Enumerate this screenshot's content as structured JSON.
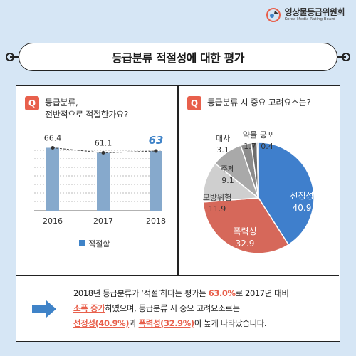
{
  "logo": {
    "name_ko": "영상물등급위원회",
    "name_en": "Korea Media Rating Board"
  },
  "title": "등급분류 적절성에 대한 평가",
  "q_badge": "Q",
  "left_question": {
    "line1": "등급분류,",
    "line2": "전반적으로 적절한가요?"
  },
  "right_question": "등급분류 시 중요 고려요소는?",
  "colors": {
    "accent": "#e8604c",
    "bar": "#86a9cc",
    "highlight": "#3f83c8",
    "pie_blue": "#3f7fcc",
    "pie_red": "#d6685a"
  },
  "chart_data": [
    {
      "type": "bar",
      "categories": [
        "2016",
        "2017",
        "2018"
      ],
      "series": [
        {
          "name": "적절함",
          "values": [
            66.4,
            61.1,
            63
          ]
        }
      ],
      "value_labels": [
        "66.4",
        "61.1",
        "63"
      ],
      "highlight_index": 2,
      "trend_line": "dashed",
      "legend": "bottom"
    },
    {
      "type": "pie",
      "labels": [
        "선정성",
        "폭력성",
        "모방위험",
        "주제",
        "대사",
        "약물",
        "공포"
      ],
      "values": [
        40.9,
        32.9,
        11.9,
        9.1,
        3.1,
        1.7,
        0.4
      ],
      "value_labels": [
        "40.9",
        "32.9",
        "11.9",
        "9.1",
        "3.1",
        "1.7",
        "0.4"
      ],
      "colors": [
        "#3f7fcc",
        "#d6685a",
        "#cfcfcf",
        "#a9a9a9",
        "#8c8c8c",
        "#6e6e6e",
        "#4a4a4a"
      ]
    }
  ],
  "summary": {
    "l1_a": "2018년 등급분류가 ‘적절’하다는 평가는 ",
    "l1_b": "63.0%",
    "l1_c": "로 2017년 대비",
    "l2_a": "소폭 증가",
    "l2_b": "하였으며, 등급분류 시 중요 고려요소로는",
    "l3_a": "선정성(40.9%)",
    "l3_b": "과 ",
    "l3_c": "폭력성(32.9%)",
    "l3_d": "이 높게 나타났습니다."
  }
}
